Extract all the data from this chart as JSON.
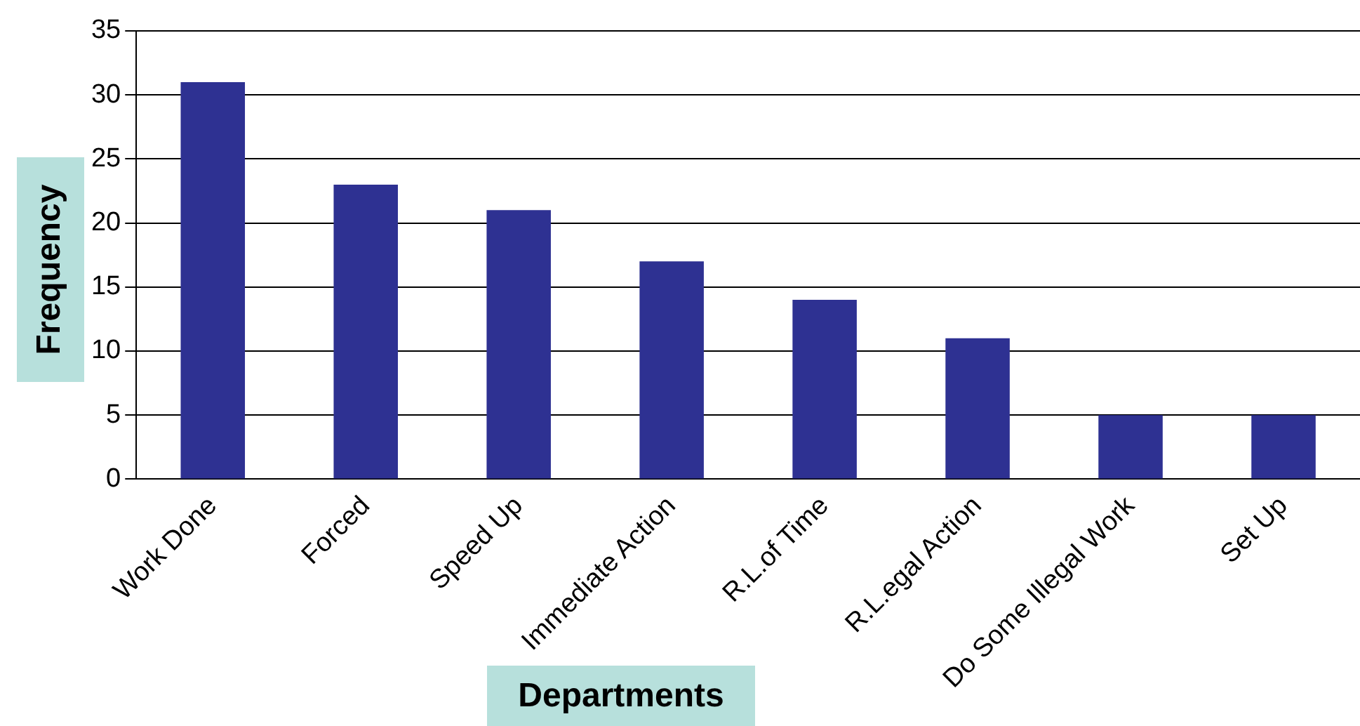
{
  "chart_data": {
    "type": "bar",
    "xlabel": "Departments",
    "ylabel": "Frequency",
    "categories": [
      "Work Done",
      "Forced",
      "Speed Up",
      "Immediate Action",
      "R.L.of Time",
      "R.L.egal Action",
      "Do Some Illegal Work",
      "Set Up"
    ],
    "values": [
      31,
      23,
      21,
      17,
      14,
      11,
      5,
      5
    ],
    "color": "#2e3192",
    "ylim": [
      0,
      35
    ],
    "yticks": [
      0,
      5,
      10,
      15,
      20,
      25,
      30,
      35
    ],
    "grid": "y",
    "legend": false
  }
}
